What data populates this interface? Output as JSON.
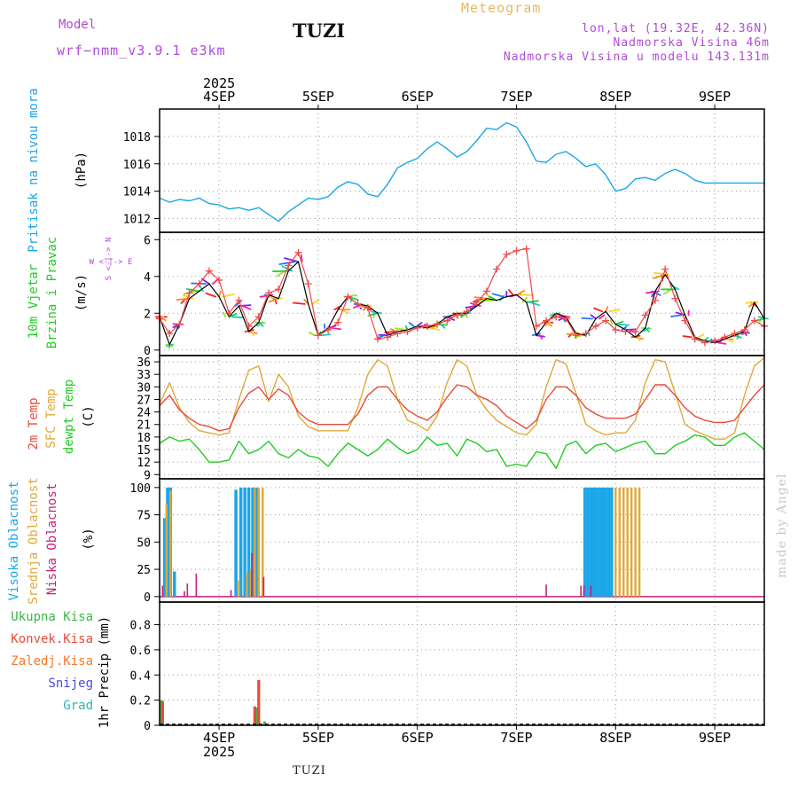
{
  "header": {
    "model_label": "Model",
    "model_value": "wrf−nmm_v3.9.1 e3km",
    "station": "TUZI",
    "meteogram_label": "Meteogram",
    "coords": "lon,lat (19.32E, 42.36N)",
    "altitude": "Nadmorska Visina 46m",
    "model_altitude": "Nadmorska Visina u modelu 143.131m"
  },
  "footer": {
    "station": "TUZI",
    "made_by": "made by Angel"
  },
  "time_axis": {
    "year": "2025",
    "day_labels": [
      "4SEP",
      "5SEP",
      "6SEP",
      "7SEP",
      "8SEP",
      "9SEP"
    ],
    "day_positions": [
      0.8,
      1.8,
      2.8,
      3.8,
      4.8,
      5.8
    ],
    "range": [
      0.2,
      6.3
    ]
  },
  "colors": {
    "pressure": "#1ba6e8",
    "wind_speed": "#000000",
    "wind_gust": "#f04848",
    "temp2m": "#e84a3a",
    "sfc_temp": "#e0a838",
    "dew": "#22cc22",
    "high_cloud": "#1ba6e8",
    "mid_cloud": "#e0a838",
    "low_cloud": "#c81e7a",
    "ukupna": "#3bb54a",
    "konvek": "#e84a3a",
    "zaledj": "#f07a28",
    "snijeg": "#4a4ae0",
    "grad": "#2ab5b0",
    "purple": "#b04bd6"
  },
  "chart_data": [
    {
      "type": "line",
      "title": "Pritisak na nivou mora",
      "ylabel": "(hPa)",
      "ylim": [
        1011,
        1020
      ],
      "yticks": [
        1012,
        1014,
        1016,
        1018
      ],
      "series": [
        {
          "name": "Pressure",
          "x": [
            0.2,
            0.3,
            0.4,
            0.5,
            0.6,
            0.7,
            0.8,
            0.9,
            1.0,
            1.1,
            1.2,
            1.3,
            1.4,
            1.5,
            1.6,
            1.7,
            1.8,
            1.9,
            2.0,
            2.1,
            2.2,
            2.3,
            2.4,
            2.5,
            2.6,
            2.7,
            2.8,
            2.9,
            3.0,
            3.1,
            3.2,
            3.3,
            3.4,
            3.5,
            3.6,
            3.7,
            3.8,
            3.9,
            4.0,
            4.1,
            4.2,
            4.3,
            4.4,
            4.5,
            4.6,
            4.7,
            4.8,
            4.9,
            5.0,
            5.1,
            5.2,
            5.3,
            5.4,
            5.5,
            5.6,
            5.7,
            5.8,
            5.9,
            6.0,
            6.1,
            6.2,
            6.3
          ],
          "values": [
            1013.5,
            1013.2,
            1013.4,
            1013.3,
            1013.5,
            1013.1,
            1013.0,
            1012.7,
            1012.8,
            1012.6,
            1012.8,
            1012.3,
            1011.8,
            1012.5,
            1013.0,
            1013.5,
            1013.4,
            1013.6,
            1014.3,
            1014.7,
            1014.5,
            1013.8,
            1013.6,
            1014.5,
            1015.7,
            1016.1,
            1016.4,
            1017.1,
            1017.6,
            1017.1,
            1016.5,
            1016.9,
            1017.7,
            1018.6,
            1018.5,
            1019.0,
            1018.7,
            1017.6,
            1016.2,
            1016.1,
            1016.7,
            1016.9,
            1016.4,
            1015.8,
            1016.0,
            1015.2,
            1014.0,
            1014.2,
            1014.9,
            1015.0,
            1014.8,
            1015.3,
            1015.6,
            1015.3,
            1014.8,
            1014.6,
            1014.6,
            1014.6,
            1014.6,
            1014.6,
            1014.6,
            1014.6
          ]
        }
      ]
    },
    {
      "type": "line",
      "title": "10m Vjetar Brzina i Pravac",
      "ylabel": "(m/s)",
      "ylim": [
        -0.3,
        6.4
      ],
      "yticks": [
        0,
        2,
        4,
        6
      ],
      "direction_legend": [
        "N",
        "S",
        "W",
        "E"
      ],
      "series": [
        {
          "name": "Wind speed",
          "x": [
            0.2,
            0.3,
            0.4,
            0.5,
            0.6,
            0.7,
            0.8,
            0.9,
            1.0,
            1.1,
            1.2,
            1.3,
            1.4,
            1.5,
            1.6,
            1.7,
            1.8,
            1.9,
            2.0,
            2.1,
            2.2,
            2.3,
            2.4,
            2.5,
            2.6,
            2.7,
            2.8,
            2.9,
            3.0,
            3.1,
            3.2,
            3.3,
            3.4,
            3.5,
            3.6,
            3.7,
            3.8,
            3.9,
            4.0,
            4.1,
            4.2,
            4.3,
            4.4,
            4.5,
            4.6,
            4.7,
            4.8,
            4.9,
            5.0,
            5.1,
            5.2,
            5.3,
            5.4,
            5.5,
            5.6,
            5.7,
            5.8,
            5.9,
            6.0,
            6.1,
            6.2,
            6.3
          ],
          "values": [
            1.8,
            0.3,
            1.4,
            2.8,
            3.2,
            3.6,
            2.9,
            1.8,
            2.4,
            1.0,
            1.5,
            3.0,
            2.8,
            4.3,
            4.8,
            2.5,
            0.8,
            1.2,
            2.2,
            2.9,
            2.5,
            2.4,
            2.0,
            0.8,
            1.0,
            1.1,
            1.3,
            1.2,
            1.4,
            1.8,
            2.0,
            2.0,
            2.4,
            2.8,
            2.7,
            2.9,
            3.0,
            2.6,
            0.8,
            1.5,
            2.0,
            1.8,
            0.9,
            0.8,
            1.7,
            2.1,
            1.4,
            1.1,
            0.7,
            1.2,
            3.2,
            4.1,
            3.3,
            1.9,
            0.7,
            0.5,
            0.4,
            0.6,
            0.8,
            1.0,
            2.6,
            1.7
          ]
        },
        {
          "name": "Wind gust",
          "x": [
            0.2,
            0.3,
            0.4,
            0.5,
            0.6,
            0.7,
            0.8,
            0.9,
            1.0,
            1.1,
            1.2,
            1.3,
            1.4,
            1.5,
            1.6,
            1.7,
            1.8,
            1.9,
            2.0,
            2.1,
            2.2,
            2.3,
            2.4,
            2.5,
            2.6,
            2.7,
            2.8,
            2.9,
            3.0,
            3.1,
            3.2,
            3.3,
            3.4,
            3.5,
            3.6,
            3.7,
            3.8,
            3.9,
            4.0,
            4.1,
            4.2,
            4.3,
            4.4,
            4.5,
            4.6,
            4.7,
            4.8,
            4.9,
            5.0,
            5.1,
            5.2,
            5.3,
            5.4,
            5.5,
            5.6,
            5.7,
            5.8,
            5.9,
            6.0,
            6.1,
            6.2,
            6.3
          ],
          "values": [
            1.7,
            0.9,
            1.4,
            3.1,
            3.6,
            4.3,
            3.8,
            2.0,
            2.7,
            1.3,
            1.8,
            3.1,
            3.3,
            4.6,
            5.3,
            3.6,
            0.8,
            1.1,
            1.5,
            2.9,
            2.5,
            2.3,
            0.6,
            0.7,
            0.9,
            1.0,
            1.2,
            1.3,
            1.4,
            1.6,
            1.9,
            2.1,
            2.6,
            3.2,
            4.4,
            5.2,
            5.4,
            5.5,
            1.3,
            1.6,
            1.8,
            1.7,
            0.8,
            0.9,
            1.3,
            1.6,
            1.1,
            1.0,
            1.0,
            1.9,
            2.7,
            4.4,
            2.8,
            1.6,
            0.6,
            0.4,
            0.5,
            0.7,
            0.9,
            1.1,
            1.6,
            1.3
          ]
        }
      ]
    },
    {
      "type": "line",
      "title": "2m Temp / SFC Temp / dewpt Temp",
      "ylabel": "(C)",
      "ylim": [
        8,
        37.5
      ],
      "yticks": [
        9,
        12,
        15,
        18,
        21,
        24,
        27,
        30,
        33,
        36
      ],
      "series": [
        {
          "name": "2m Temp",
          "x": [
            0.2,
            0.3,
            0.4,
            0.5,
            0.6,
            0.7,
            0.8,
            0.9,
            1.0,
            1.1,
            1.2,
            1.3,
            1.4,
            1.5,
            1.6,
            1.7,
            1.8,
            1.9,
            2.0,
            2.1,
            2.2,
            2.3,
            2.4,
            2.5,
            2.6,
            2.7,
            2.8,
            2.9,
            3.0,
            3.1,
            3.2,
            3.3,
            3.4,
            3.5,
            3.6,
            3.7,
            3.8,
            3.9,
            4.0,
            4.1,
            4.2,
            4.3,
            4.4,
            4.5,
            4.6,
            4.7,
            4.8,
            4.9,
            5.0,
            5.1,
            5.2,
            5.3,
            5.4,
            5.5,
            5.6,
            5.7,
            5.8,
            5.9,
            6.0,
            6.1,
            6.2,
            6.3
          ],
          "values": [
            25.5,
            28,
            24.5,
            22.5,
            21,
            20.5,
            19.5,
            20,
            25,
            28.5,
            30,
            27,
            29.5,
            28,
            24,
            22,
            21,
            21,
            21,
            21,
            23.5,
            28,
            30,
            30,
            27,
            24.5,
            23,
            22,
            24,
            27.5,
            30.5,
            30,
            28,
            27,
            25.5,
            23,
            21.5,
            20,
            22,
            27,
            30,
            30,
            28,
            25,
            23.5,
            22.5,
            22.5,
            22.5,
            23.5,
            27,
            30.5,
            30.5,
            28,
            25,
            23,
            22,
            21.5,
            21.5,
            22,
            25,
            28,
            30.5
          ]
        },
        {
          "name": "SFC Temp",
          "x": [
            0.2,
            0.3,
            0.4,
            0.5,
            0.6,
            0.7,
            0.8,
            0.9,
            1.0,
            1.1,
            1.2,
            1.3,
            1.4,
            1.5,
            1.6,
            1.7,
            1.8,
            1.9,
            2.0,
            2.1,
            2.2,
            2.3,
            2.4,
            2.5,
            2.6,
            2.7,
            2.8,
            2.9,
            3.0,
            3.1,
            3.2,
            3.3,
            3.4,
            3.5,
            3.6,
            3.7,
            3.8,
            3.9,
            4.0,
            4.1,
            4.2,
            4.3,
            4.4,
            4.5,
            4.6,
            4.7,
            4.8,
            4.9,
            5.0,
            5.1,
            5.2,
            5.3,
            5.4,
            5.5,
            5.6,
            5.7,
            5.8,
            5.9,
            6.0,
            6.1,
            6.2,
            6.3
          ],
          "values": [
            26,
            31,
            25,
            21.5,
            19.5,
            19,
            18.5,
            19,
            27,
            34,
            35,
            26.5,
            33,
            30,
            23,
            20.5,
            19.5,
            19.5,
            19.5,
            19.5,
            25,
            33,
            36.5,
            35,
            27,
            22,
            21,
            19.5,
            23,
            31,
            36.5,
            35,
            28,
            24.5,
            22,
            20.5,
            19,
            18.5,
            21,
            30,
            36.5,
            35.5,
            28.5,
            21,
            19.5,
            18.5,
            19,
            19,
            22,
            31,
            36.5,
            36,
            28.5,
            21,
            19.5,
            18.5,
            17.5,
            17.5,
            19,
            28,
            35,
            37
          ]
        },
        {
          "name": "dewpt Temp",
          "x": [
            0.2,
            0.3,
            0.4,
            0.5,
            0.6,
            0.7,
            0.8,
            0.9,
            1.0,
            1.1,
            1.2,
            1.3,
            1.4,
            1.5,
            1.6,
            1.7,
            1.8,
            1.9,
            2.0,
            2.1,
            2.2,
            2.3,
            2.4,
            2.5,
            2.6,
            2.7,
            2.8,
            2.9,
            3.0,
            3.1,
            3.2,
            3.3,
            3.4,
            3.5,
            3.6,
            3.7,
            3.8,
            3.9,
            4.0,
            4.1,
            4.2,
            4.3,
            4.4,
            4.5,
            4.6,
            4.7,
            4.8,
            4.9,
            5.0,
            5.1,
            5.2,
            5.3,
            5.4,
            5.5,
            5.6,
            5.7,
            5.8,
            5.9,
            6.0,
            6.1,
            6.2,
            6.3
          ],
          "values": [
            16.5,
            18,
            17,
            17.5,
            15,
            12,
            12,
            12.5,
            17,
            14,
            15,
            17,
            14,
            13,
            15,
            13.5,
            13,
            11,
            14,
            16.5,
            15,
            13.5,
            15,
            17.5,
            15.5,
            14,
            15,
            18,
            16,
            16.5,
            13.5,
            17.5,
            16.5,
            14.5,
            15,
            11,
            11.5,
            11,
            14.5,
            14,
            10.5,
            16,
            17,
            14,
            16,
            16.5,
            14.5,
            15.5,
            16.5,
            17,
            14,
            14,
            16,
            17,
            18.5,
            18,
            16,
            16,
            18,
            19,
            17,
            15
          ]
        }
      ]
    },
    {
      "type": "bar",
      "title": "Visoka / Srednja / Niska Oblacnost",
      "ylabel": "(%)",
      "ylim": [
        -5,
        108
      ],
      "yticks": [
        0,
        25,
        50,
        75,
        100
      ],
      "series": [
        {
          "name": "Visoka Oblacnost",
          "x": [
            0.25,
            0.28,
            0.31,
            0.35,
            0.97,
            1.02,
            1.06,
            1.1,
            1.14,
            1.18,
            4.49,
            4.52,
            4.55,
            4.58,
            4.61,
            4.64,
            4.67,
            4.7,
            4.73,
            4.76
          ],
          "values": [
            72,
            100,
            100,
            23,
            98,
            100,
            100,
            100,
            100,
            100,
            100,
            100,
            100,
            100,
            100,
            100,
            100,
            100,
            100,
            100
          ]
        },
        {
          "name": "Srednja Oblacnost",
          "x": [
            0.27,
            0.31,
            1.0,
            1.08,
            1.12,
            1.16,
            1.2,
            1.24,
            4.8,
            4.84,
            4.88,
            4.92,
            4.96,
            5.0,
            5.04
          ],
          "values": [
            85,
            97,
            15,
            22,
            25,
            100,
            100,
            100,
            100,
            100,
            100,
            100,
            100,
            100,
            100
          ]
        },
        {
          "name": "Niska Oblacnost",
          "x": [
            0.23,
            0.45,
            0.48,
            0.57,
            0.92,
            1.13,
            1.25,
            4.1,
            4.45,
            4.48,
            4.55
          ],
          "values": [
            10,
            5,
            12,
            21,
            6,
            40,
            18,
            11,
            10,
            10,
            10
          ]
        }
      ]
    },
    {
      "type": "bar",
      "title": "1hr Precip",
      "ylabel": "1hr Precip (mm)",
      "ylim": [
        0,
        0.98
      ],
      "yticks": [
        0,
        0.2,
        0.4,
        0.6,
        0.8
      ],
      "legend": [
        "Ukupna Kisa",
        "Konvek.Kisa",
        "Zaledj.Kisa",
        "Snijeg",
        "Grad"
      ],
      "series": [
        {
          "name": "Ukupna Kisa",
          "x": [
            0.22,
            1.18,
            1.26
          ],
          "values": [
            0.2,
            0.14,
            0.03
          ]
        },
        {
          "name": "Konvek.Kisa",
          "x": [
            0.23,
            1.16,
            1.2
          ],
          "values": [
            0.19,
            0.15,
            0.36
          ]
        }
      ]
    }
  ]
}
